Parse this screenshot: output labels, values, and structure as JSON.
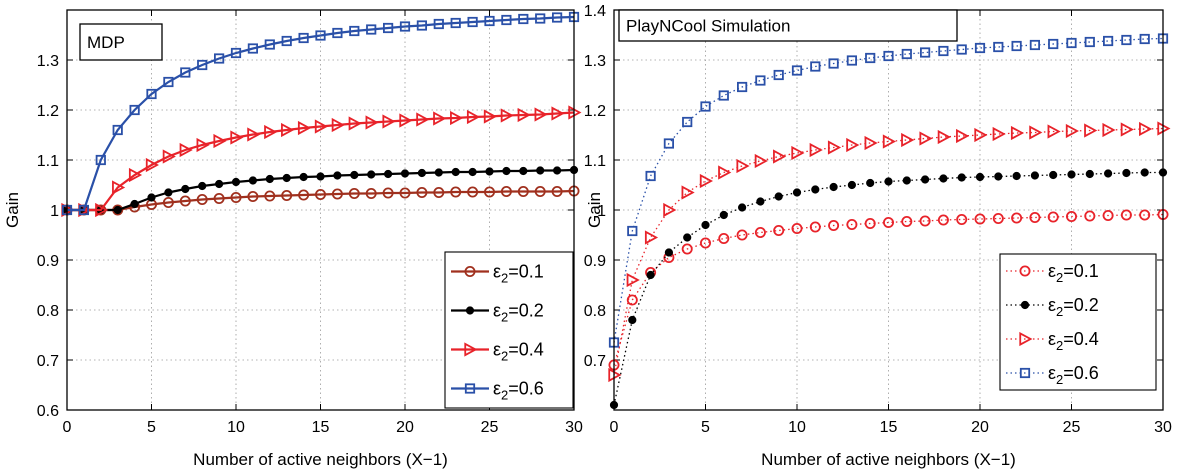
{
  "chart_data": [
    {
      "type": "line",
      "title": "MDP",
      "xlabel": "Number of active neighbors (X−1)",
      "ylabel": "Gain",
      "xlim": [
        0,
        30
      ],
      "ylim": [
        0.6,
        1.4
      ],
      "xticks": [
        "0",
        "5",
        "10",
        "15",
        "20",
        "25",
        "30"
      ],
      "yticks": [
        "0.6",
        "0.7",
        "0.8",
        "0.9",
        "1",
        "1.1",
        "1.2",
        "1.3"
      ],
      "grid": true,
      "legend_position": "bottom-right",
      "x": [
        0,
        1,
        2,
        3,
        4,
        5,
        6,
        7,
        8,
        9,
        10,
        11,
        12,
        13,
        14,
        15,
        16,
        17,
        18,
        19,
        20,
        21,
        22,
        23,
        24,
        25,
        26,
        27,
        28,
        29,
        30
      ],
      "series": [
        {
          "name": "0.1",
          "color": "#a0301e",
          "marker": "circle",
          "values": [
            1.0,
            1.0,
            1.0,
            1.0,
            1.006,
            1.011,
            1.015,
            1.018,
            1.021,
            1.023,
            1.025,
            1.027,
            1.028,
            1.029,
            1.03,
            1.031,
            1.032,
            1.033,
            1.033,
            1.034,
            1.034,
            1.035,
            1.035,
            1.036,
            1.036,
            1.036,
            1.037,
            1.037,
            1.037,
            1.037,
            1.038
          ]
        },
        {
          "name": "0.2",
          "color": "#000000",
          "marker": "dot",
          "values": [
            1.0,
            1.0,
            1.0,
            1.0,
            1.012,
            1.025,
            1.035,
            1.042,
            1.048,
            1.052,
            1.056,
            1.059,
            1.062,
            1.064,
            1.066,
            1.067,
            1.069,
            1.07,
            1.071,
            1.072,
            1.073,
            1.074,
            1.075,
            1.076,
            1.076,
            1.077,
            1.078,
            1.078,
            1.079,
            1.079,
            1.08
          ]
        },
        {
          "name": "0.4",
          "color": "#e8232a",
          "marker": "triangle",
          "values": [
            1.0,
            1.0,
            1.0,
            1.045,
            1.07,
            1.09,
            1.107,
            1.12,
            1.13,
            1.138,
            1.145,
            1.151,
            1.156,
            1.16,
            1.164,
            1.167,
            1.17,
            1.173,
            1.175,
            1.177,
            1.179,
            1.181,
            1.183,
            1.184,
            1.186,
            1.187,
            1.189,
            1.19,
            1.191,
            1.193,
            1.195
          ]
        },
        {
          "name": "0.6",
          "color": "#2a50a8",
          "marker": "square",
          "values": [
            1.0,
            1.0,
            1.1,
            1.16,
            1.2,
            1.232,
            1.256,
            1.275,
            1.29,
            1.303,
            1.314,
            1.323,
            1.331,
            1.338,
            1.344,
            1.349,
            1.354,
            1.358,
            1.361,
            1.364,
            1.367,
            1.369,
            1.372,
            1.374,
            1.376,
            1.378,
            1.38,
            1.382,
            1.383,
            1.385,
            1.386
          ]
        }
      ]
    },
    {
      "type": "scatter",
      "title": "PlayNCool Simulation",
      "xlabel": "Number of active neighbors (X−1)",
      "ylabel": "Gain",
      "xlim": [
        0,
        30
      ],
      "ylim": [
        0.6,
        1.4
      ],
      "xticks": [
        "0",
        "5",
        "10",
        "15",
        "20",
        "25",
        "30"
      ],
      "yticks": [
        "0.7",
        "0.8",
        "0.9",
        "1",
        "1.1",
        "1.2",
        "1.3",
        "1.4"
      ],
      "grid": true,
      "legend_position": "bottom-right",
      "x": [
        0,
        1,
        2,
        3,
        4,
        5,
        6,
        7,
        8,
        9,
        10,
        11,
        12,
        13,
        14,
        15,
        16,
        17,
        18,
        19,
        20,
        21,
        22,
        23,
        24,
        25,
        26,
        27,
        28,
        29,
        30
      ],
      "series": [
        {
          "name": "0.1",
          "color": "#e8232a",
          "marker": "circle",
          "values": [
            0.69,
            0.82,
            0.875,
            0.905,
            0.922,
            0.934,
            0.943,
            0.95,
            0.955,
            0.959,
            0.963,
            0.966,
            0.969,
            0.971,
            0.973,
            0.975,
            0.977,
            0.978,
            0.98,
            0.981,
            0.982,
            0.983,
            0.984,
            0.985,
            0.986,
            0.987,
            0.988,
            0.989,
            0.99,
            0.99,
            0.991
          ]
        },
        {
          "name": "0.2",
          "color": "#000000",
          "marker": "dot",
          "values": [
            0.61,
            0.78,
            0.87,
            0.915,
            0.945,
            0.97,
            0.99,
            1.005,
            1.017,
            1.027,
            1.035,
            1.041,
            1.046,
            1.05,
            1.054,
            1.057,
            1.059,
            1.061,
            1.063,
            1.065,
            1.066,
            1.067,
            1.068,
            1.069,
            1.07,
            1.071,
            1.072,
            1.073,
            1.074,
            1.075,
            1.075
          ]
        },
        {
          "name": "0.4",
          "color": "#e8232a",
          "marker": "triangle",
          "values": [
            0.67,
            0.86,
            0.945,
            1.0,
            1.035,
            1.058,
            1.075,
            1.088,
            1.098,
            1.107,
            1.114,
            1.12,
            1.125,
            1.13,
            1.134,
            1.137,
            1.14,
            1.143,
            1.146,
            1.148,
            1.15,
            1.152,
            1.154,
            1.155,
            1.157,
            1.158,
            1.159,
            1.16,
            1.161,
            1.162,
            1.163
          ]
        },
        {
          "name": "0.6",
          "color": "#2a50a8",
          "marker": "square",
          "values": [
            0.735,
            0.958,
            1.068,
            1.133,
            1.176,
            1.207,
            1.229,
            1.246,
            1.259,
            1.27,
            1.279,
            1.287,
            1.293,
            1.299,
            1.304,
            1.308,
            1.312,
            1.315,
            1.318,
            1.321,
            1.324,
            1.326,
            1.328,
            1.33,
            1.332,
            1.334,
            1.336,
            1.338,
            1.34,
            1.342,
            1.343
          ]
        }
      ]
    }
  ],
  "legend_symbol": "ε",
  "legend_subscript": "2",
  "legend_prefix": "="
}
